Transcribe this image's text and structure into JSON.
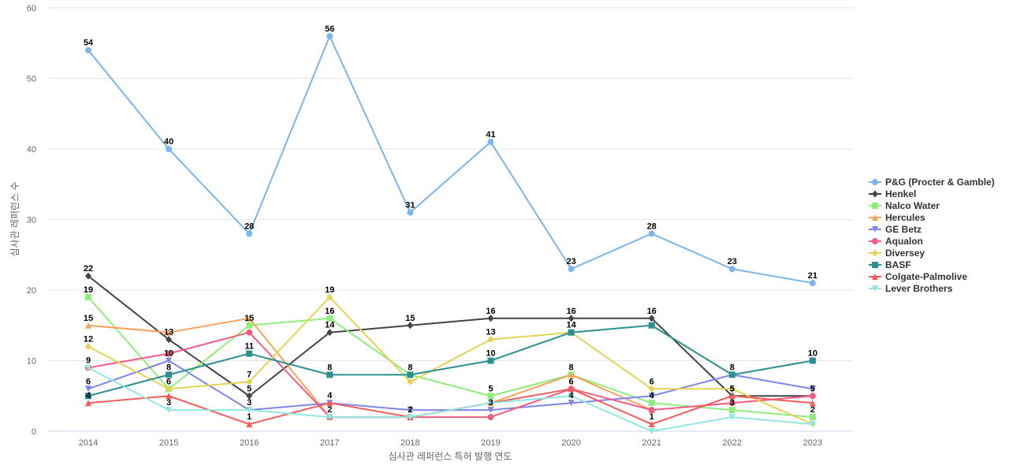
{
  "chart_data": {
    "type": "line",
    "title": "",
    "xlabel": "심사관 레퍼런스 특허 발행 연도",
    "ylabel": "심사관 레퍼런스 수",
    "x": [
      "2014",
      "2015",
      "2016",
      "2017",
      "2018",
      "2019",
      "2020",
      "2021",
      "2022",
      "2023"
    ],
    "ylim": [
      0,
      60
    ],
    "yticks": [
      0,
      10,
      20,
      30,
      40,
      50,
      60
    ],
    "grid": true,
    "legend_position": "right",
    "series": [
      {
        "name": "P&G (Procter & Gamble)",
        "color": "#7cb5ec",
        "marker": "circle",
        "values": [
          54,
          40,
          28,
          56,
          31,
          41,
          23,
          28,
          23,
          21
        ]
      },
      {
        "name": "Henkel",
        "color": "#434348",
        "marker": "diamond",
        "values": [
          22,
          13,
          5,
          14,
          15,
          16,
          16,
          16,
          5,
          5
        ]
      },
      {
        "name": "Nalco Water",
        "color": "#90ed7d",
        "marker": "square",
        "values": [
          19,
          6,
          15,
          16,
          8,
          5,
          8,
          4,
          3,
          2
        ]
      },
      {
        "name": "Hercules",
        "color": "#f7a35c",
        "marker": "triangle",
        "values": [
          15,
          14,
          16,
          2,
          2,
          4,
          8,
          3,
          null,
          null
        ]
      },
      {
        "name": "GE Betz",
        "color": "#8085e9",
        "marker": "triangle-down",
        "values": [
          6,
          10,
          3,
          4,
          3,
          3,
          4,
          5,
          8,
          6
        ]
      },
      {
        "name": "Aqualon",
        "color": "#f15c80",
        "marker": "circle",
        "values": [
          9,
          11,
          14,
          2,
          2,
          2,
          6,
          3,
          4,
          5
        ]
      },
      {
        "name": "Diversey",
        "color": "#e4d354",
        "marker": "diamond",
        "values": [
          12,
          6,
          7,
          19,
          7,
          13,
          14,
          6,
          6,
          1
        ]
      },
      {
        "name": "BASF",
        "color": "#2b908f",
        "marker": "square",
        "values": [
          5,
          8,
          11,
          8,
          8,
          10,
          14,
          15,
          8,
          10
        ]
      },
      {
        "name": "Colgate-Palmolive",
        "color": "#f45b5b",
        "marker": "triangle",
        "values": [
          4,
          5,
          1,
          4,
          2,
          null,
          6,
          1,
          5,
          4
        ]
      },
      {
        "name": "Lever Brothers",
        "color": "#91e8e1",
        "marker": "triangle-down",
        "values": [
          9,
          3,
          3,
          2,
          2,
          4,
          5,
          0,
          2,
          1
        ]
      }
    ],
    "data_labels": [
      {
        "x": "2014",
        "y": 54,
        "text": "54"
      },
      {
        "x": "2015",
        "y": 40,
        "text": "40"
      },
      {
        "x": "2016",
        "y": 28,
        "text": "28"
      },
      {
        "x": "2017",
        "y": 56,
        "text": "56"
      },
      {
        "x": "2018",
        "y": 31,
        "text": "31"
      },
      {
        "x": "2019",
        "y": 41,
        "text": "41"
      },
      {
        "x": "2020",
        "y": 23,
        "text": "23"
      },
      {
        "x": "2021",
        "y": 28,
        "text": "28"
      },
      {
        "x": "2022",
        "y": 23,
        "text": "23"
      },
      {
        "x": "2023",
        "y": 21,
        "text": "21"
      },
      {
        "x": "2014",
        "y": 22,
        "text": "22"
      },
      {
        "x": "2015",
        "y": 13,
        "text": "13"
      },
      {
        "x": "2016",
        "y": 5,
        "text": "5"
      },
      {
        "x": "2017",
        "y": 14,
        "text": "14"
      },
      {
        "x": "2018",
        "y": 15,
        "text": "15"
      },
      {
        "x": "2019",
        "y": 16,
        "text": "16"
      },
      {
        "x": "2020",
        "y": 16,
        "text": "16"
      },
      {
        "x": "2021",
        "y": 16,
        "text": "16"
      },
      {
        "x": "2022",
        "y": 5,
        "text": "5"
      },
      {
        "x": "2023",
        "y": 5,
        "text": "5"
      },
      {
        "x": "2014",
        "y": 19,
        "text": "19"
      },
      {
        "x": "2015",
        "y": 6,
        "text": "6"
      },
      {
        "x": "2016",
        "y": 15,
        "text": "15"
      },
      {
        "x": "2017",
        "y": 16,
        "text": "16"
      },
      {
        "x": "2019",
        "y": 5,
        "text": "5"
      },
      {
        "x": "2020",
        "y": 8,
        "text": "8"
      },
      {
        "x": "2023",
        "y": 2,
        "text": "2"
      },
      {
        "x": "2014",
        "y": 15,
        "text": "15"
      },
      {
        "x": "2014",
        "y": 6,
        "text": "6"
      },
      {
        "x": "2015",
        "y": 10,
        "text": "10"
      },
      {
        "x": "2017",
        "y": 4,
        "text": "4"
      },
      {
        "x": "2018",
        "y": 2,
        "text": "2"
      },
      {
        "x": "2020",
        "y": 4,
        "text": "4"
      },
      {
        "x": "2021",
        "y": 4,
        "text": "4"
      },
      {
        "x": "2014",
        "y": 9,
        "text": "9"
      },
      {
        "x": "2015",
        "y": 3,
        "text": "3"
      },
      {
        "x": "2016",
        "y": 11,
        "text": "11"
      },
      {
        "x": "2016",
        "y": 3,
        "text": "3"
      },
      {
        "x": "2017",
        "y": 2,
        "text": "2"
      },
      {
        "x": "2019",
        "y": 3,
        "text": "3"
      },
      {
        "x": "2020",
        "y": 6,
        "text": "6"
      },
      {
        "x": "2021",
        "y": 1,
        "text": "1"
      },
      {
        "x": "2022",
        "y": 3,
        "text": "3"
      },
      {
        "x": "2014",
        "y": 12,
        "text": "12"
      },
      {
        "x": "2016",
        "y": 7,
        "text": "7"
      },
      {
        "x": "2017",
        "y": 19,
        "text": "19"
      },
      {
        "x": "2019",
        "y": 13,
        "text": "13"
      },
      {
        "x": "2020",
        "y": 14,
        "text": "14"
      },
      {
        "x": "2021",
        "y": 6,
        "text": "6"
      },
      {
        "x": "2022",
        "y": 5,
        "text": "5"
      },
      {
        "x": "2014",
        "y": 4,
        "text": "4"
      },
      {
        "x": "2015",
        "y": 8,
        "text": "8"
      },
      {
        "x": "2017",
        "y": 8,
        "text": "8"
      },
      {
        "x": "2018",
        "y": 8,
        "text": "8"
      },
      {
        "x": "2019",
        "y": 10,
        "text": "10"
      },
      {
        "x": "2022",
        "y": 8,
        "text": "8"
      },
      {
        "x": "2023",
        "y": 10,
        "text": "10"
      },
      {
        "x": "2016",
        "y": 1,
        "text": "1"
      }
    ]
  }
}
